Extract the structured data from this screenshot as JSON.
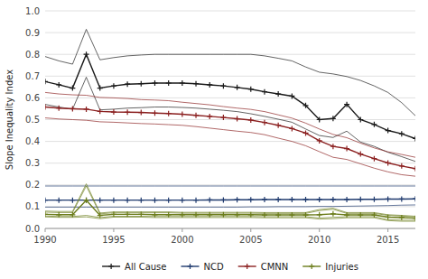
{
  "chart_data": {
    "type": "line",
    "ylabel": "Slope Inequality Index",
    "x": [
      1990,
      1991,
      1992,
      1993,
      1994,
      1995,
      1996,
      1997,
      1998,
      1999,
      2000,
      2001,
      2002,
      2003,
      2004,
      2005,
      2006,
      2007,
      2008,
      2009,
      2010,
      2011,
      2012,
      2013,
      2014,
      2015,
      2016,
      2017
    ],
    "series": [
      {
        "name": "All Cause",
        "color": "#1a1a1a",
        "values": [
          0.675,
          0.66,
          0.645,
          0.8,
          0.645,
          0.655,
          0.663,
          0.665,
          0.668,
          0.668,
          0.668,
          0.665,
          0.66,
          0.655,
          0.648,
          0.64,
          0.628,
          0.618,
          0.608,
          0.565,
          0.5,
          0.505,
          0.57,
          0.5,
          0.478,
          0.45,
          0.435,
          0.413
        ],
        "bounds": [
          [
            0.79,
            0.77,
            0.755,
            0.915,
            0.775,
            0.785,
            0.793,
            0.797,
            0.8,
            0.8,
            0.8,
            0.8,
            0.8,
            0.8,
            0.8,
            0.8,
            0.793,
            0.782,
            0.77,
            0.742,
            0.718,
            0.71,
            0.698,
            0.68,
            0.655,
            0.625,
            0.578,
            0.518
          ],
          [
            0.57,
            0.558,
            0.548,
            0.695,
            0.545,
            0.548,
            0.553,
            0.555,
            0.558,
            0.558,
            0.556,
            0.553,
            0.548,
            0.543,
            0.537,
            0.527,
            0.515,
            0.502,
            0.488,
            0.457,
            0.427,
            0.418,
            0.447,
            0.397,
            0.377,
            0.35,
            0.33,
            0.308
          ]
        ]
      },
      {
        "name": "NCD",
        "color": "#1f3a6e",
        "values": [
          0.13,
          0.13,
          0.13,
          0.13,
          0.13,
          0.13,
          0.13,
          0.13,
          0.13,
          0.13,
          0.13,
          0.13,
          0.131,
          0.131,
          0.132,
          0.132,
          0.133,
          0.133,
          0.133,
          0.133,
          0.133,
          0.133,
          0.133,
          0.134,
          0.134,
          0.135,
          0.135,
          0.136
        ],
        "bounds": [
          [
            0.195,
            0.195,
            0.195,
            0.195,
            0.195,
            0.195,
            0.195,
            0.195,
            0.195,
            0.195,
            0.195,
            0.195,
            0.195,
            0.195,
            0.195,
            0.195,
            0.195,
            0.195,
            0.195,
            0.195,
            0.195,
            0.195,
            0.195,
            0.195,
            0.195,
            0.195,
            0.195,
            0.195
          ],
          [
            0.098,
            0.098,
            0.098,
            0.098,
            0.098,
            0.098,
            0.098,
            0.098,
            0.098,
            0.098,
            0.098,
            0.098,
            0.098,
            0.098,
            0.098,
            0.099,
            0.099,
            0.1,
            0.1,
            0.1,
            0.101,
            0.101,
            0.102,
            0.103,
            0.104,
            0.105,
            0.107,
            0.108
          ]
        ]
      },
      {
        "name": "CMNN",
        "color": "#8B2020",
        "values": [
          0.558,
          0.553,
          0.55,
          0.548,
          0.538,
          0.535,
          0.534,
          0.533,
          0.53,
          0.528,
          0.525,
          0.52,
          0.515,
          0.51,
          0.504,
          0.498,
          0.487,
          0.474,
          0.459,
          0.438,
          0.403,
          0.377,
          0.367,
          0.342,
          0.321,
          0.301,
          0.287,
          0.275
        ],
        "bounds": [
          [
            0.625,
            0.618,
            0.614,
            0.612,
            0.602,
            0.6,
            0.597,
            0.592,
            0.59,
            0.587,
            0.58,
            0.574,
            0.568,
            0.56,
            0.553,
            0.547,
            0.537,
            0.522,
            0.507,
            0.484,
            0.457,
            0.432,
            0.417,
            0.392,
            0.37,
            0.352,
            0.34,
            0.327
          ],
          [
            0.508,
            0.503,
            0.5,
            0.497,
            0.49,
            0.488,
            0.485,
            0.482,
            0.48,
            0.477,
            0.474,
            0.468,
            0.461,
            0.454,
            0.447,
            0.441,
            0.431,
            0.415,
            0.4,
            0.38,
            0.353,
            0.327,
            0.317,
            0.297,
            0.277,
            0.26,
            0.247,
            0.24
          ]
        ]
      },
      {
        "name": "Injuries",
        "color": "#6b7c1a",
        "values": [
          0.065,
          0.063,
          0.063,
          0.13,
          0.06,
          0.065,
          0.065,
          0.065,
          0.063,
          0.063,
          0.063,
          0.063,
          0.063,
          0.063,
          0.063,
          0.063,
          0.062,
          0.062,
          0.062,
          0.062,
          0.063,
          0.067,
          0.062,
          0.062,
          0.062,
          0.052,
          0.05,
          0.047
        ],
        "bounds": [
          [
            0.075,
            0.073,
            0.073,
            0.195,
            0.067,
            0.072,
            0.072,
            0.072,
            0.072,
            0.072,
            0.07,
            0.07,
            0.07,
            0.07,
            0.07,
            0.07,
            0.069,
            0.069,
            0.069,
            0.069,
            0.082,
            0.088,
            0.069,
            0.069,
            0.069,
            0.06,
            0.057,
            0.053
          ],
          [
            0.08,
            0.078,
            0.078,
            0.205,
            0.071,
            0.076,
            0.076,
            0.076,
            0.076,
            0.076,
            0.074,
            0.074,
            0.074,
            0.074,
            0.074,
            0.074,
            0.073,
            0.073,
            0.073,
            0.073,
            0.087,
            0.093,
            0.073,
            0.073,
            0.073,
            0.063,
            0.06,
            0.056
          ],
          [
            0.057,
            0.055,
            0.055,
            0.06,
            0.05,
            0.056,
            0.056,
            0.056,
            0.055,
            0.055,
            0.055,
            0.055,
            0.055,
            0.055,
            0.055,
            0.055,
            0.054,
            0.054,
            0.054,
            0.054,
            0.048,
            0.051,
            0.054,
            0.054,
            0.054,
            0.04,
            0.038,
            0.038
          ],
          [
            0.053,
            0.051,
            0.051,
            0.053,
            0.045,
            0.052,
            0.052,
            0.052,
            0.05,
            0.05,
            0.05,
            0.05,
            0.05,
            0.05,
            0.05,
            0.05,
            0.049,
            0.049,
            0.049,
            0.049,
            0.043,
            0.045,
            0.049,
            0.049,
            0.049,
            0.036,
            0.033,
            0.033
          ]
        ]
      }
    ],
    "marker": "plus",
    "xlim": [
      1990,
      2017
    ],
    "ylim": [
      0.0,
      1.0
    ],
    "yticks": [
      {
        "value": 0.0,
        "label": "0.0"
      },
      0.1,
      0.2,
      0.3,
      0.4,
      0.5,
      0.6,
      0.7,
      0.8,
      0.9,
      {
        "value": 1.0,
        "label": "1.0"
      }
    ],
    "xticks": [
      1990,
      1995,
      2000,
      2005,
      2010,
      2015
    ],
    "grid": true,
    "legend": "bottom"
  }
}
